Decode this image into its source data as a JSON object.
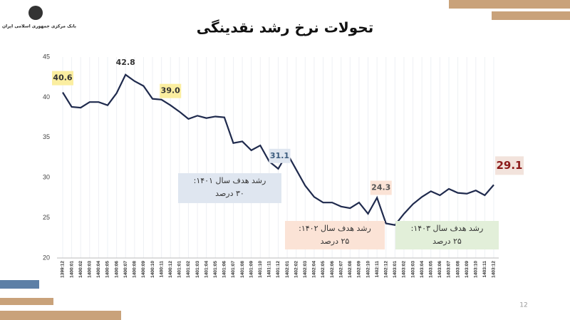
{
  "logo_text": "بانک مرکزی جمهوری اسلامی ایران",
  "page_number": "12",
  "chart_data": {
    "type": "line",
    "title": "تحولات نرخ رشد نقدینگی",
    "categories": [
      "1399:12",
      "1400:01",
      "1400:02",
      "1400:03",
      "1400:04",
      "1400:05",
      "1400:06",
      "1400:07",
      "1400:08",
      "1400:09",
      "1400:10",
      "1400:11",
      "1400:12",
      "1401:01",
      "1401:02",
      "1401:03",
      "1401:04",
      "1401:05",
      "1401:06",
      "1401:07",
      "1401:08",
      "1401:09",
      "1401:10",
      "1401:11",
      "1401:12",
      "1402:01",
      "1402:02",
      "1402:03",
      "1402:04",
      "1402:05",
      "1402:06",
      "1402:07",
      "1402:08",
      "1402:09",
      "1402:10",
      "1402:11",
      "1402:12",
      "1403:01",
      "1403:02",
      "1403:03",
      "1403:04",
      "1403:05",
      "1403:06",
      "1403:07",
      "1403:08",
      "1403:09",
      "1403:10",
      "1403:11",
      "1403:12"
    ],
    "values": [
      40.6,
      38.8,
      38.7,
      39.4,
      39.4,
      39.0,
      40.5,
      42.8,
      42.0,
      41.4,
      39.8,
      39.7,
      39.0,
      38.2,
      37.3,
      37.7,
      37.4,
      37.6,
      37.5,
      34.3,
      34.5,
      33.4,
      34.0,
      32.0,
      31.1,
      33.0,
      31.0,
      29.0,
      27.6,
      26.9,
      26.9,
      26.4,
      26.2,
      26.9,
      25.5,
      27.5,
      24.3,
      24.1,
      25.5,
      26.7,
      27.6,
      28.3,
      27.8,
      28.6,
      28.1,
      28.0,
      28.4,
      27.8,
      29.1
    ],
    "value_labels": [
      "40.6",
      null,
      null,
      null,
      null,
      null,
      null,
      "42.8",
      null,
      null,
      null,
      null,
      "39.0",
      null,
      null,
      null,
      null,
      null,
      null,
      null,
      null,
      null,
      null,
      null,
      "31.1",
      null,
      null,
      null,
      null,
      null,
      null,
      null,
      null,
      null,
      null,
      null,
      "24.3",
      null,
      null,
      null,
      null,
      null,
      null,
      null,
      null,
      null,
      null,
      null,
      "29.1"
    ],
    "color": "#1f2a4d",
    "ylim": [
      20,
      45
    ],
    "yticks": [
      20,
      25,
      30,
      35,
      40,
      45
    ],
    "annotations": [
      {
        "lines": [
          "رشد هدف سال ۱۴۰۱:",
          "۳۰ درصد"
        ]
      },
      {
        "lines": [
          "رشد هدف سال ۱۴۰۲:",
          "۲۵ درصد"
        ]
      },
      {
        "lines": [
          "رشد هدف سال ۱۴۰۳:",
          "۲۵ درصد"
        ]
      }
    ]
  }
}
